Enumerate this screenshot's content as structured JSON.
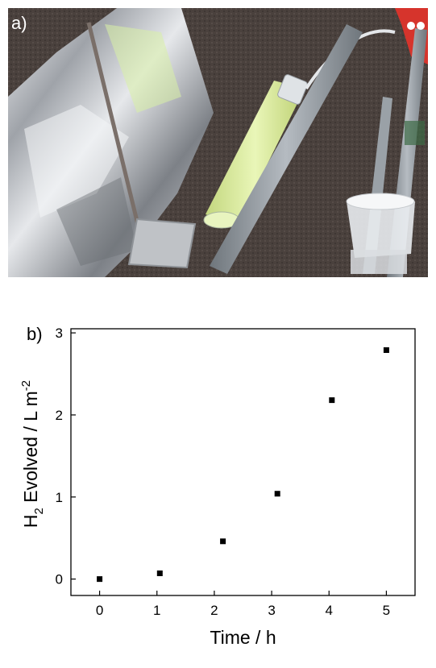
{
  "panels": {
    "a_label": "a)",
    "b_label": "b)"
  },
  "colors": {
    "background": "#ffffff",
    "carpet": "#4a413d",
    "foil": "#c9cbd0",
    "tube_liquid": "#d8ec9a",
    "frame": "#8f969d",
    "marker": "#000000"
  },
  "chart_data": {
    "type": "scatter",
    "x": [
      0,
      1.05,
      2.15,
      3.1,
      4.05,
      5.0
    ],
    "y": [
      0.0,
      0.07,
      0.46,
      1.04,
      2.18,
      2.79
    ],
    "xlabel": "Time / h",
    "ylabel_parts": {
      "main": "H",
      "subscript": "2",
      "middle": " Evolved / L m",
      "superscript": "-2"
    },
    "xlim": [
      -0.5,
      5.5
    ],
    "ylim": [
      -0.2,
      3.05
    ],
    "xticks": [
      0,
      1,
      2,
      3,
      4,
      5
    ],
    "yticks": [
      0,
      1,
      2,
      3
    ],
    "grid": false,
    "marker": "square"
  }
}
